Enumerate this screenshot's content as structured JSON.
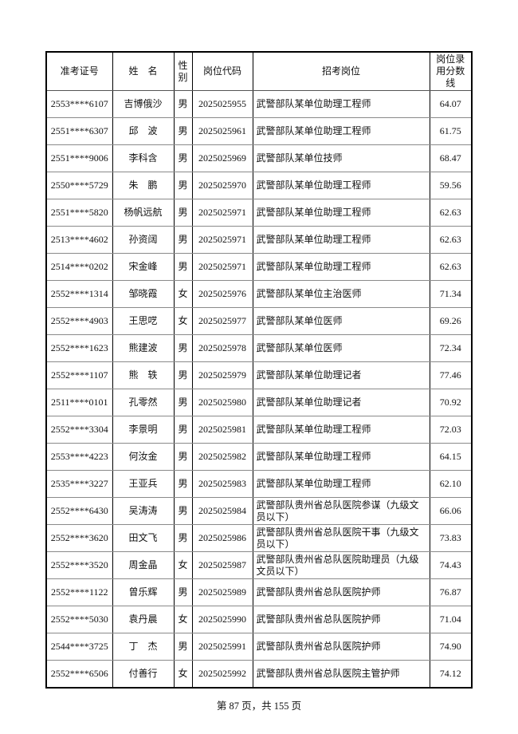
{
  "table": {
    "headers": [
      "准考证号",
      "姓　名",
      "性别",
      "岗位代码",
      "招考岗位",
      "岗位录用分数线"
    ],
    "rows": [
      {
        "id": "2553****6107",
        "name": "吉博俄沙",
        "gender": "男",
        "code": "2025025955",
        "position": "武警部队某单位助理工程师",
        "score": "64.07"
      },
      {
        "id": "2551****6307",
        "name": "邱　波",
        "gender": "男",
        "code": "2025025961",
        "position": "武警部队某单位助理工程师",
        "score": "61.75"
      },
      {
        "id": "2551****9006",
        "name": "李科含",
        "gender": "男",
        "code": "2025025969",
        "position": "武警部队某单位技师",
        "score": "68.47"
      },
      {
        "id": "2550****5729",
        "name": "朱　鹏",
        "gender": "男",
        "code": "2025025970",
        "position": "武警部队某单位助理工程师",
        "score": "59.56"
      },
      {
        "id": "2551****5820",
        "name": "杨帆远航",
        "gender": "男",
        "code": "2025025971",
        "position": "武警部队某单位助理工程师",
        "score": "62.63"
      },
      {
        "id": "2513****4602",
        "name": "孙资阔",
        "gender": "男",
        "code": "2025025971",
        "position": "武警部队某单位助理工程师",
        "score": "62.63"
      },
      {
        "id": "2514****0202",
        "name": "宋金峰",
        "gender": "男",
        "code": "2025025971",
        "position": "武警部队某单位助理工程师",
        "score": "62.63"
      },
      {
        "id": "2552****1314",
        "name": "邹晓霞",
        "gender": "女",
        "code": "2025025976",
        "position": "武警部队某单位主治医师",
        "score": "71.34"
      },
      {
        "id": "2552****4903",
        "name": "王思呓",
        "gender": "女",
        "code": "2025025977",
        "position": "武警部队某单位医师",
        "score": "69.26"
      },
      {
        "id": "2552****1623",
        "name": "熊建波",
        "gender": "男",
        "code": "2025025978",
        "position": "武警部队某单位医师",
        "score": "72.34"
      },
      {
        "id": "2552****1107",
        "name": "熊　轶",
        "gender": "男",
        "code": "2025025979",
        "position": "武警部队某单位助理记者",
        "score": "77.46"
      },
      {
        "id": "2511****0101",
        "name": "孔零然",
        "gender": "男",
        "code": "2025025980",
        "position": "武警部队某单位助理记者",
        "score": "70.92"
      },
      {
        "id": "2552****3304",
        "name": "李景明",
        "gender": "男",
        "code": "2025025981",
        "position": "武警部队某单位助理工程师",
        "score": "72.03"
      },
      {
        "id": "2553****4223",
        "name": "何汝金",
        "gender": "男",
        "code": "2025025982",
        "position": "武警部队某单位助理工程师",
        "score": "64.15"
      },
      {
        "id": "2535****3227",
        "name": "王亚兵",
        "gender": "男",
        "code": "2025025983",
        "position": "武警部队某单位助理工程师",
        "score": "62.10"
      },
      {
        "id": "2552****6430",
        "name": "吴涛涛",
        "gender": "男",
        "code": "2025025984",
        "position": "武警部队贵州省总队医院参谋（九级文员以下）",
        "score": "66.06"
      },
      {
        "id": "2552****3620",
        "name": "田文飞",
        "gender": "男",
        "code": "2025025986",
        "position": "武警部队贵州省总队医院干事（九级文员以下）",
        "score": "73.83"
      },
      {
        "id": "2552****3520",
        "name": "周金晶",
        "gender": "女",
        "code": "2025025987",
        "position": "武警部队贵州省总队医院助理员（九级文员以下）",
        "score": "74.43"
      },
      {
        "id": "2552****1122",
        "name": "曾乐辉",
        "gender": "男",
        "code": "2025025989",
        "position": "武警部队贵州省总队医院护师",
        "score": "76.87"
      },
      {
        "id": "2552****5030",
        "name": "袁丹晨",
        "gender": "女",
        "code": "2025025990",
        "position": "武警部队贵州省总队医院护师",
        "score": "71.04"
      },
      {
        "id": "2544****3725",
        "name": "丁　杰",
        "gender": "男",
        "code": "2025025991",
        "position": "武警部队贵州省总队医院护师",
        "score": "74.90"
      },
      {
        "id": "2552****6506",
        "name": "付善行",
        "gender": "女",
        "code": "2025025992",
        "position": "武警部队贵州省总队医院主管护师",
        "score": "74.12"
      }
    ]
  },
  "footer": {
    "page_text": "第 87 页，共 155 页"
  }
}
